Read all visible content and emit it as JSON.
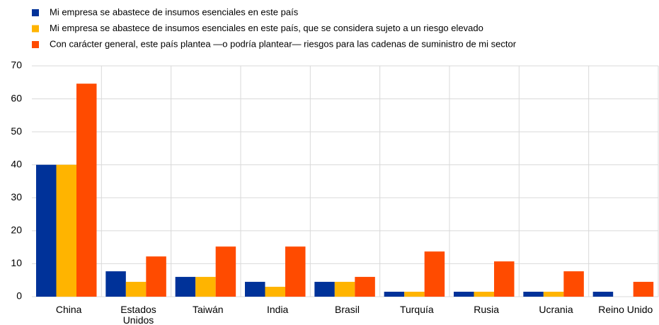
{
  "chart_data": {
    "type": "bar",
    "categories": [
      "China",
      "Estados Unidos",
      "Taiwán",
      "India",
      "Brasil",
      "Turquía",
      "Rusia",
      "Ucrania",
      "Reino Unido"
    ],
    "series": [
      {
        "name": "Mi empresa se abastece de insumos esenciales en este país",
        "color": "#003299",
        "values": [
          40,
          7.7,
          6.0,
          4.5,
          4.5,
          1.5,
          1.5,
          1.5,
          1.5
        ]
      },
      {
        "name": "Mi empresa se abastece de insumos esenciales en este país, que se considera sujeto a un riesgo elevado",
        "color": "#ffb400",
        "values": [
          40,
          4.5,
          6.0,
          3.0,
          4.5,
          1.5,
          1.5,
          1.5,
          0
        ]
      },
      {
        "name": "Con carácter general, este país plantea —o podría plantear— riesgos para las cadenas de suministro de mi sector",
        "color": "#ff4b00",
        "values": [
          64.6,
          12.2,
          15.2,
          15.2,
          6.0,
          13.7,
          10.7,
          7.7,
          4.5
        ]
      }
    ],
    "ylim": [
      0,
      70
    ],
    "yticks": [
      0,
      10,
      20,
      30,
      40,
      50,
      60,
      70
    ],
    "grid": true
  }
}
